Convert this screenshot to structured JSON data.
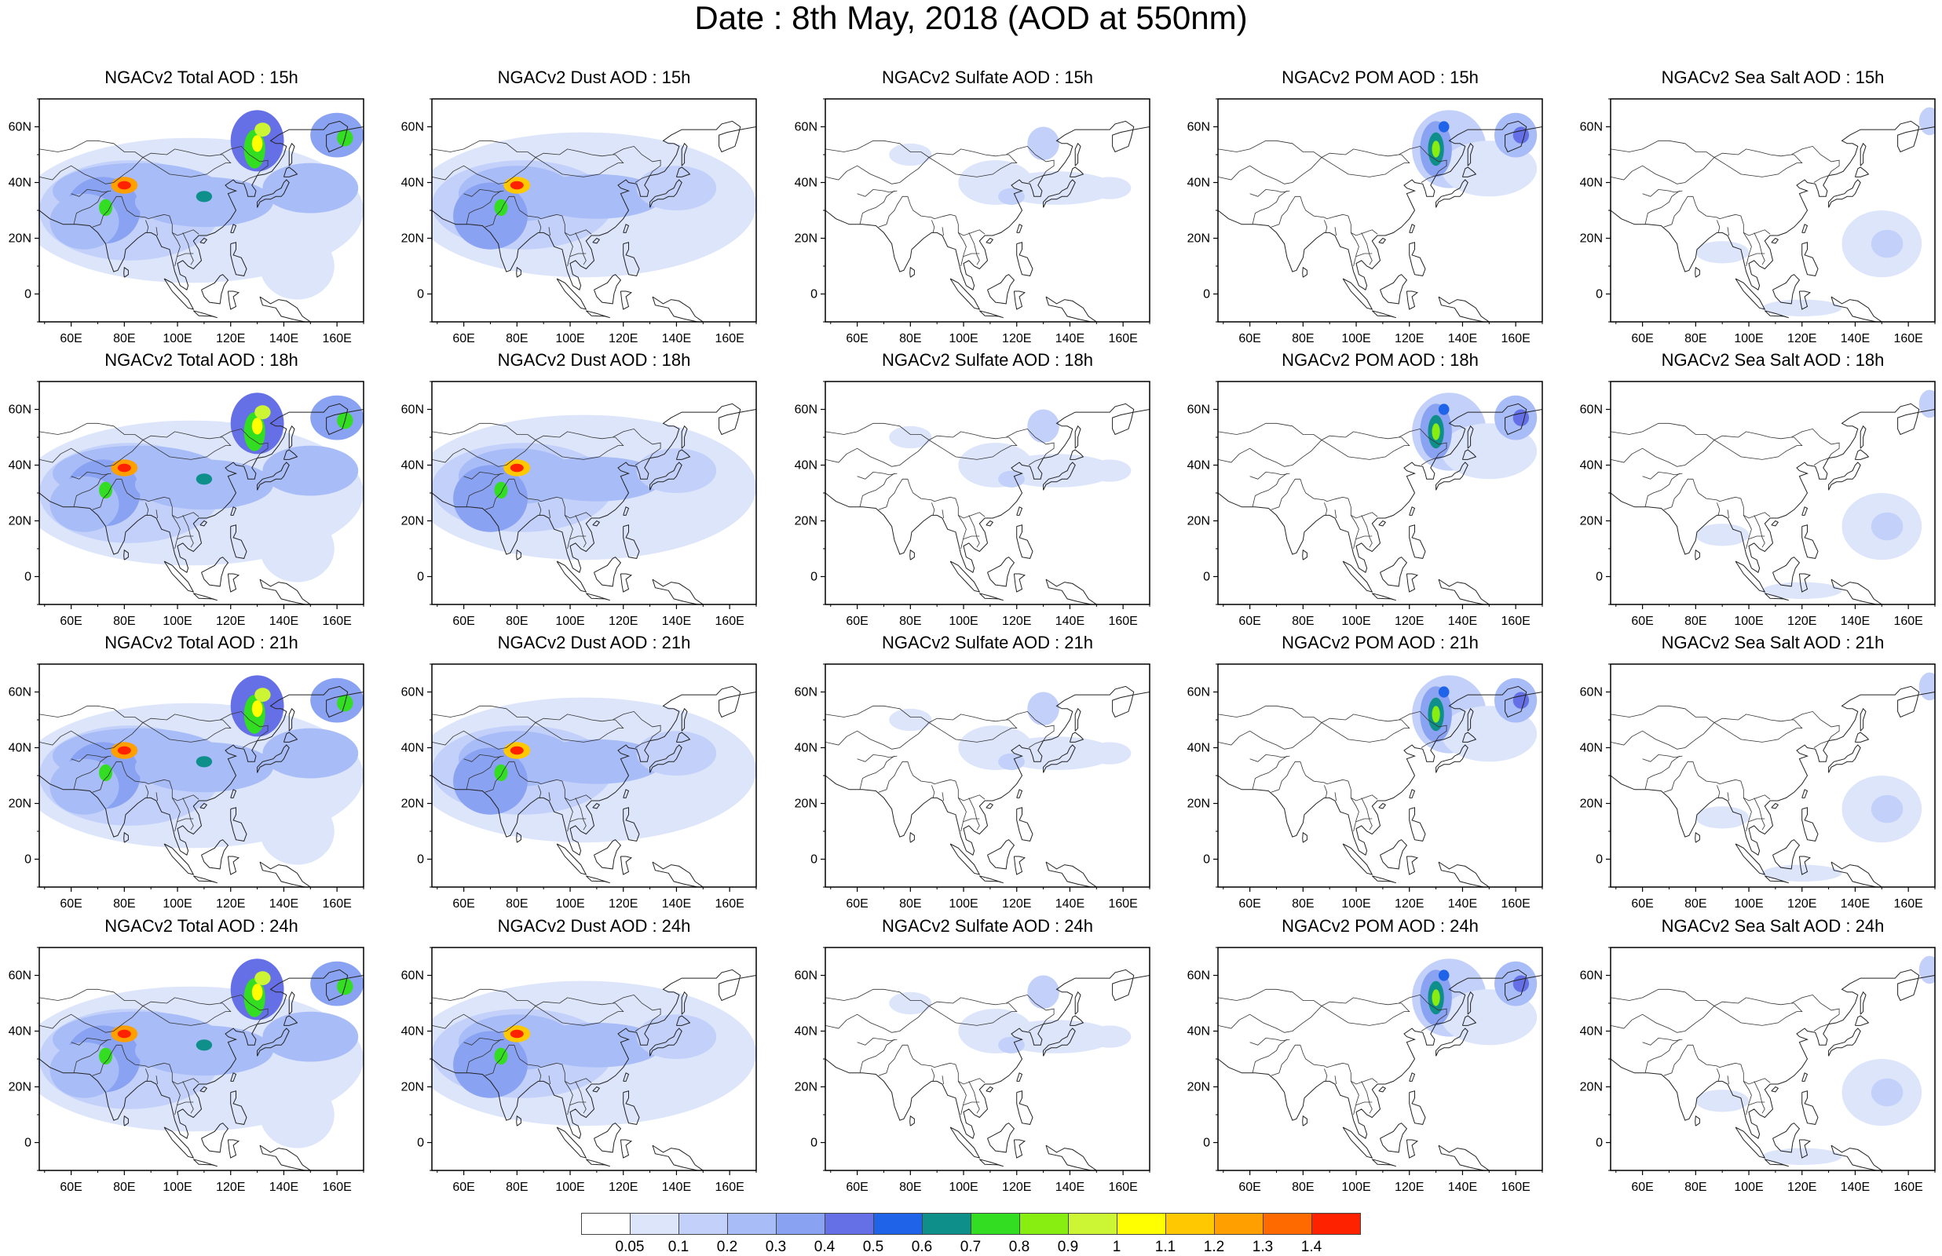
{
  "title": "Date : 8th May, 2018 (AOD at 550nm)",
  "axes": {
    "lon_ticks": [
      "60E",
      "80E",
      "100E",
      "120E",
      "140E",
      "160E"
    ],
    "lat_ticks": [
      "60N",
      "40N",
      "20N",
      "0"
    ]
  },
  "panels": [
    {
      "title": "NGACv2 Total AOD : 15h",
      "field": "total"
    },
    {
      "title": "NGACv2 Dust AOD : 15h",
      "field": "dust"
    },
    {
      "title": "NGACv2 Sulfate AOD : 15h",
      "field": "sulfate"
    },
    {
      "title": "NGACv2 POM AOD : 15h",
      "field": "pom"
    },
    {
      "title": "NGACv2 Sea Salt AOD : 15h",
      "field": "seasalt"
    },
    {
      "title": "NGACv2 Total AOD : 18h",
      "field": "total"
    },
    {
      "title": "NGACv2 Dust AOD : 18h",
      "field": "dust"
    },
    {
      "title": "NGACv2 Sulfate AOD : 18h",
      "field": "sulfate"
    },
    {
      "title": "NGACv2 POM AOD : 18h",
      "field": "pom"
    },
    {
      "title": "NGACv2 Sea Salt AOD : 18h",
      "field": "seasalt"
    },
    {
      "title": "NGACv2 Total AOD : 21h",
      "field": "total"
    },
    {
      "title": "NGACv2 Dust AOD : 21h",
      "field": "dust"
    },
    {
      "title": "NGACv2 Sulfate AOD : 21h",
      "field": "sulfate"
    },
    {
      "title": "NGACv2 POM AOD : 21h",
      "field": "pom"
    },
    {
      "title": "NGACv2 Sea Salt AOD : 21h",
      "field": "seasalt"
    },
    {
      "title": "NGACv2 Total AOD : 24h",
      "field": "total"
    },
    {
      "title": "NGACv2 Dust AOD : 24h",
      "field": "dust"
    },
    {
      "title": "NGACv2 Sulfate AOD : 24h",
      "field": "sulfate"
    },
    {
      "title": "NGACv2 POM AOD : 24h",
      "field": "pom"
    },
    {
      "title": "NGACv2 Sea Salt  AOD : 24h",
      "field": "seasalt"
    }
  ],
  "colorbar": {
    "colors": [
      "#ffffff",
      "#dde5fb",
      "#c3d1fa",
      "#a8bcf7",
      "#8aa2f2",
      "#6670e6",
      "#1f63e8",
      "#0f8f8a",
      "#33dd22",
      "#88ee11",
      "#ccf533",
      "#ffff00",
      "#ffc800",
      "#ff9f00",
      "#ff6a00",
      "#ff2200"
    ],
    "labels": [
      "0.05",
      "0.1",
      "0.2",
      "0.3",
      "0.4",
      "0.5",
      "0.6",
      "0.7",
      "0.8",
      "0.9",
      "1",
      "1.1",
      "1.2",
      "1.3",
      "1.4"
    ]
  }
}
